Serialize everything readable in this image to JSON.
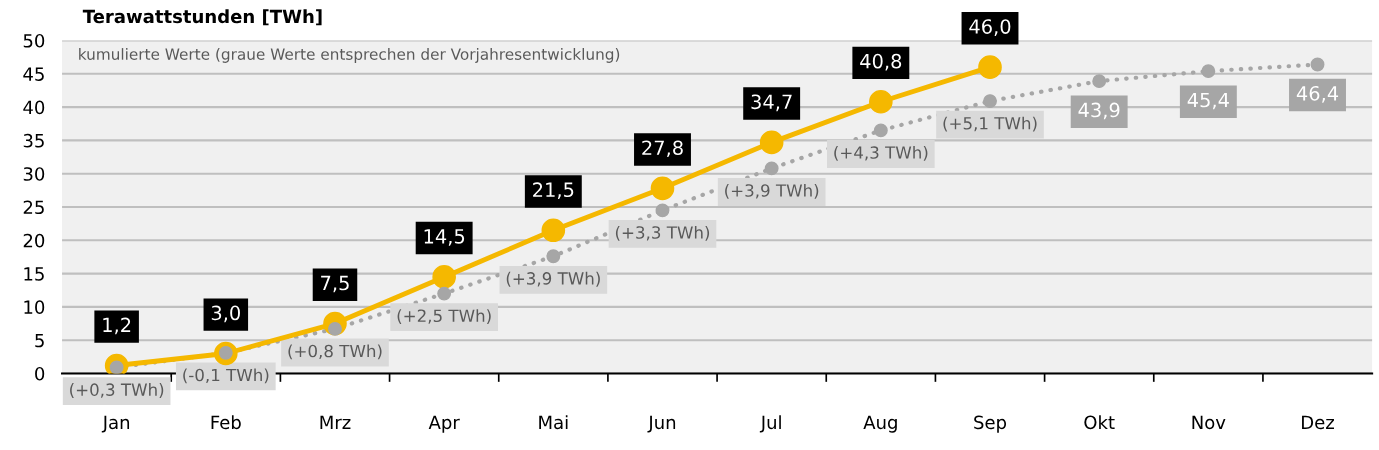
{
  "chart_data": {
    "type": "line",
    "ylabel": "Terawattstunden [TWh]",
    "subtitle": "kumulierte Werte (graue Werte entsprechen der Vorjahresentwicklung)",
    "categories": [
      "Jan",
      "Feb",
      "Mrz",
      "Apr",
      "Mai",
      "Jun",
      "Jul",
      "Aug",
      "Sep",
      "Okt",
      "Nov",
      "Dez"
    ],
    "series": [
      {
        "color": "#a6a6a6",
        "line_style": "dotted",
        "marker": "circle",
        "values": [
          0.9,
          3.1,
          6.7,
          12.0,
          17.6,
          24.5,
          30.8,
          36.5,
          40.9,
          43.9,
          45.4,
          46.4
        ],
        "value_labels": [
          null,
          null,
          null,
          null,
          null,
          null,
          null,
          null,
          null,
          "43,9",
          "45,4",
          "46,4"
        ]
      },
      {
        "color": "#f5b800",
        "line_style": "solid",
        "marker": "circle",
        "values": [
          1.2,
          3.0,
          7.5,
          14.5,
          21.5,
          27.8,
          34.7,
          40.8,
          46.0,
          null,
          null,
          null
        ],
        "value_labels": [
          "1,2",
          "3,0",
          "7,5",
          "14,5",
          "21,5",
          "27,8",
          "34,7",
          "40,8",
          "46,0",
          null,
          null,
          null
        ]
      }
    ],
    "annotations": [
      {
        "text": "(+0,3 TWh)",
        "x": "Jan",
        "y": 0.9
      },
      {
        "text": "(-0,1 TWh)",
        "x": "Feb",
        "y": 3.1
      },
      {
        "text": "(+0,8 TWh)",
        "x": "Mrz",
        "y": 6.7
      },
      {
        "text": "(+2,5 TWh)",
        "x": "Apr",
        "y": 12.0
      },
      {
        "text": "(+3,9 TWh)",
        "x": "Mai",
        "y": 17.6
      },
      {
        "text": "(+3,3 TWh)",
        "x": "Jun",
        "y": 24.5
      },
      {
        "text": "(+3,9 TWh)",
        "x": "Jul",
        "y": 30.8
      },
      {
        "text": "(+4,3 TWh)",
        "x": "Aug",
        "y": 36.5
      },
      {
        "text": "(+5,1 TWh)",
        "x": "Sep",
        "y": 40.9
      }
    ],
    "ylim": [
      0,
      50
    ],
    "yticks": [
      0,
      5,
      10,
      15,
      20,
      25,
      30,
      35,
      40,
      45,
      50
    ],
    "grid": "y",
    "legend": false
  }
}
